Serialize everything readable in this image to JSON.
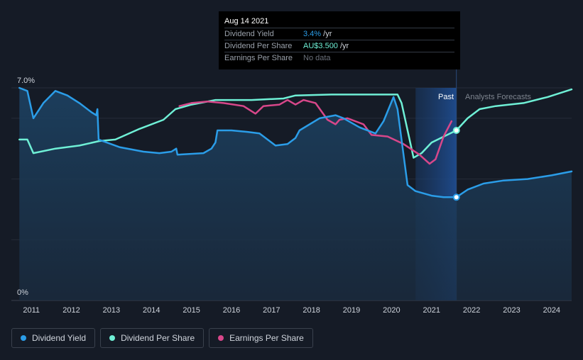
{
  "tooltip": {
    "date": "Aug 14 2021",
    "rows": [
      {
        "label": "Dividend Yield",
        "value": "3.4%",
        "suffix": " /yr"
      },
      {
        "label": "Dividend Per Share",
        "value": "AU$3.500",
        "suffix": " /yr"
      },
      {
        "label": "Earnings Per Share",
        "value": "No data",
        "suffix": ""
      }
    ]
  },
  "legend": [
    {
      "label": "Dividend Yield",
      "color": "#2b9de8"
    },
    {
      "label": "Dividend Per Share",
      "color": "#6ff0d6"
    },
    {
      "label": "Earnings Per Share",
      "color": "#d8478a"
    }
  ],
  "chart_data": {
    "type": "line",
    "y_axis": {
      "min": 0,
      "max": 7,
      "unit": "%",
      "labels": [
        "7.0%",
        "0%"
      ]
    },
    "x_axis": {
      "min": 2010.5,
      "max": 2024.5,
      "ticks": [
        "2011",
        "2012",
        "2013",
        "2014",
        "2015",
        "2016",
        "2017",
        "2018",
        "2019",
        "2020",
        "2021",
        "2022",
        "2023",
        "2024"
      ]
    },
    "regions": {
      "past_label": "Past",
      "forecast_label": "Analysts Forecasts",
      "past_start": 2020.6,
      "today": 2021.62
    },
    "highlight_point": {
      "x": 2021.62,
      "yield": 3.4,
      "dps": 5.6
    },
    "series": [
      {
        "name": "Dividend Yield",
        "color": "#2b9de8",
        "points": [
          [
            2010.7,
            7.0
          ],
          [
            2010.9,
            6.9
          ],
          [
            2011.05,
            6.0
          ],
          [
            2011.3,
            6.5
          ],
          [
            2011.6,
            6.9
          ],
          [
            2011.9,
            6.75
          ],
          [
            2012.2,
            6.5
          ],
          [
            2012.5,
            6.2
          ],
          [
            2012.62,
            6.1
          ],
          [
            2012.65,
            6.3
          ],
          [
            2012.68,
            5.3
          ],
          [
            2013.2,
            5.05
          ],
          [
            2013.8,
            4.9
          ],
          [
            2014.2,
            4.85
          ],
          [
            2014.5,
            4.9
          ],
          [
            2014.62,
            5.0
          ],
          [
            2014.65,
            4.8
          ],
          [
            2015.3,
            4.85
          ],
          [
            2015.5,
            5.0
          ],
          [
            2015.6,
            5.2
          ],
          [
            2015.65,
            5.6
          ],
          [
            2016.0,
            5.6
          ],
          [
            2016.4,
            5.55
          ],
          [
            2016.7,
            5.5
          ],
          [
            2017.1,
            5.1
          ],
          [
            2017.4,
            5.15
          ],
          [
            2017.6,
            5.35
          ],
          [
            2017.7,
            5.6
          ],
          [
            2018.2,
            6.0
          ],
          [
            2018.6,
            6.1
          ],
          [
            2018.8,
            6.0
          ],
          [
            2019.2,
            5.7
          ],
          [
            2019.6,
            5.5
          ],
          [
            2019.8,
            5.9
          ],
          [
            2020.05,
            6.7
          ],
          [
            2020.15,
            6.3
          ],
          [
            2020.4,
            3.8
          ],
          [
            2020.6,
            3.6
          ],
          [
            2021.0,
            3.45
          ],
          [
            2021.3,
            3.4
          ],
          [
            2021.62,
            3.4
          ]
        ]
      },
      {
        "name": "Dividend Yield (forecast)",
        "color": "#2b9de8",
        "points": [
          [
            2021.62,
            3.4
          ],
          [
            2021.9,
            3.65
          ],
          [
            2022.3,
            3.85
          ],
          [
            2022.8,
            3.95
          ],
          [
            2023.4,
            4.0
          ],
          [
            2024.0,
            4.12
          ],
          [
            2024.5,
            4.25
          ]
        ]
      },
      {
        "name": "Dividend Per Share",
        "color": "#6ff0d6",
        "points": [
          [
            2010.7,
            5.3
          ],
          [
            2010.9,
            5.3
          ],
          [
            2011.05,
            4.85
          ],
          [
            2011.6,
            5.0
          ],
          [
            2012.2,
            5.1
          ],
          [
            2012.7,
            5.25
          ],
          [
            2013.1,
            5.3
          ],
          [
            2013.7,
            5.65
          ],
          [
            2014.3,
            5.95
          ],
          [
            2014.6,
            6.3
          ],
          [
            2015.0,
            6.45
          ],
          [
            2015.6,
            6.6
          ],
          [
            2016.5,
            6.6
          ],
          [
            2017.3,
            6.65
          ],
          [
            2017.6,
            6.75
          ],
          [
            2018.5,
            6.78
          ],
          [
            2020.15,
            6.78
          ],
          [
            2020.25,
            6.5
          ],
          [
            2020.55,
            4.7
          ],
          [
            2020.75,
            4.85
          ],
          [
            2021.0,
            5.2
          ],
          [
            2021.62,
            5.6
          ]
        ]
      },
      {
        "name": "Dividend Per Share (forecast)",
        "color": "#6ff0d6",
        "points": [
          [
            2021.62,
            5.6
          ],
          [
            2021.9,
            6.0
          ],
          [
            2022.2,
            6.3
          ],
          [
            2022.6,
            6.4
          ],
          [
            2023.3,
            6.5
          ],
          [
            2023.9,
            6.7
          ],
          [
            2024.5,
            6.95
          ]
        ]
      },
      {
        "name": "Earnings Per Share",
        "color": "#d8478a",
        "points": [
          [
            2014.7,
            6.4
          ],
          [
            2015.0,
            6.5
          ],
          [
            2015.4,
            6.55
          ],
          [
            2015.8,
            6.5
          ],
          [
            2016.3,
            6.4
          ],
          [
            2016.6,
            6.15
          ],
          [
            2016.8,
            6.4
          ],
          [
            2017.2,
            6.45
          ],
          [
            2017.4,
            6.6
          ],
          [
            2017.6,
            6.45
          ],
          [
            2017.8,
            6.6
          ],
          [
            2018.1,
            6.5
          ],
          [
            2018.4,
            5.95
          ],
          [
            2018.6,
            5.8
          ],
          [
            2018.7,
            5.95
          ],
          [
            2018.9,
            6.0
          ],
          [
            2019.3,
            5.8
          ],
          [
            2019.5,
            5.45
          ],
          [
            2019.9,
            5.4
          ],
          [
            2020.3,
            5.15
          ],
          [
            2020.7,
            4.8
          ],
          [
            2020.95,
            4.5
          ],
          [
            2021.1,
            4.65
          ],
          [
            2021.3,
            5.4
          ],
          [
            2021.5,
            5.9
          ]
        ]
      }
    ]
  }
}
